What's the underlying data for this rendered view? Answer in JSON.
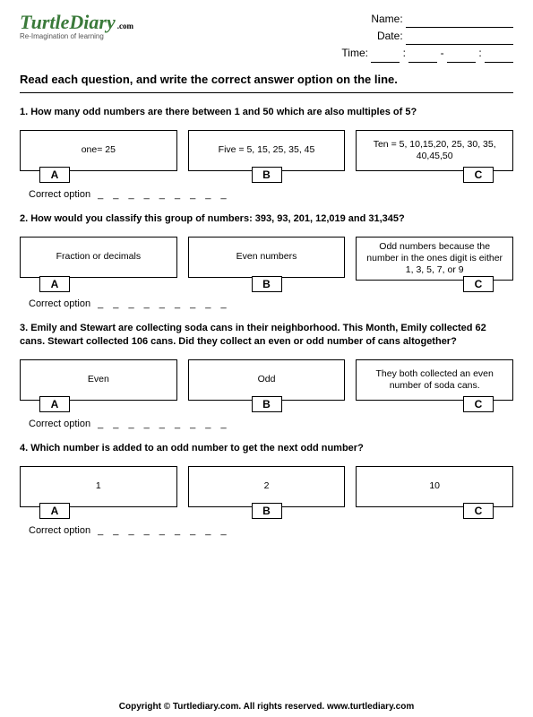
{
  "logo": {
    "main": "TurtleDiary",
    "dotcom": ".com",
    "tagline": "Re-Imagination of learning"
  },
  "header": {
    "name_label": "Name:",
    "date_label": "Date:",
    "time_label": "Time:"
  },
  "instruction": "Read each question, and write the correct answer option on the line.",
  "questions": [
    {
      "num": "1.",
      "text": "How many odd numbers are there between 1 and 50 which are also multiples of 5?",
      "opts": [
        {
          "letter": "A",
          "text": "one=    25"
        },
        {
          "letter": "B",
          "text": "Five = 5, 15, 25, 35, 45"
        },
        {
          "letter": "C",
          "text": "Ten = 5, 10,15,20, 25, 30, 35, 40,45,50"
        }
      ]
    },
    {
      "num": "2.",
      "text": "How would you classify this group of numbers: 393, 93, 201, 12,019 and 31,345?",
      "opts": [
        {
          "letter": "A",
          "text": "Fraction or decimals"
        },
        {
          "letter": "B",
          "text": "Even numbers"
        },
        {
          "letter": "C",
          "text": "Odd numbers because the number in the ones digit is either 1, 3, 5, 7, or 9"
        }
      ]
    },
    {
      "num": "3.",
      "text": "Emily and Stewart are collecting soda cans in their neighborhood.  This Month, Emily collected 62 cans.  Stewart collected 106 cans.  Did they collect an even or odd number of  cans altogether?",
      "opts": [
        {
          "letter": "A",
          "text": "Even"
        },
        {
          "letter": "B",
          "text": "Odd"
        },
        {
          "letter": "C",
          "text": "They both collected an even number of soda cans."
        }
      ]
    },
    {
      "num": "4.",
      "text": "Which number is added to an odd number to get the next odd number?",
      "opts": [
        {
          "letter": "A",
          "text": "1"
        },
        {
          "letter": "B",
          "text": "2"
        },
        {
          "letter": "C",
          "text": "10"
        }
      ]
    }
  ],
  "correct_label": "Correct option",
  "dashes": "_ _ _ _ _ _ _ _ _",
  "footer": "Copyright © Turtlediary.com. All rights reserved.   www.turtlediary.com"
}
